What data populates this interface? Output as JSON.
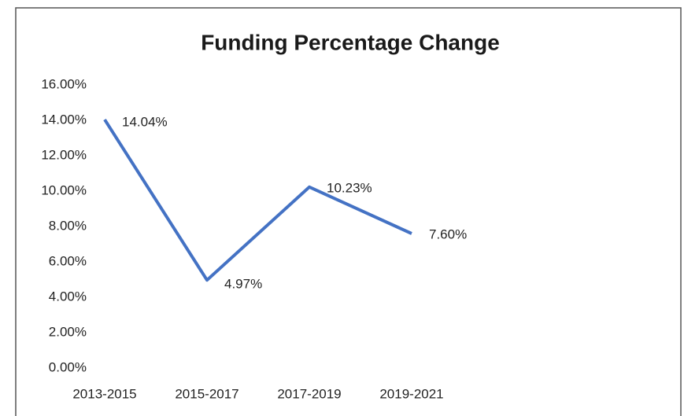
{
  "chart_data": {
    "type": "line",
    "title": "Funding Percentage Change",
    "categories": [
      "2013-2015",
      "2015-2017",
      "2017-2019",
      "2019-2021"
    ],
    "series": [
      {
        "name": "Funding Percentage Change",
        "color": "#4472c4",
        "values": [
          14.04,
          4.97,
          10.23,
          7.6
        ],
        "value_labels": [
          "14.04%",
          "4.97%",
          "10.23%",
          "7.60%"
        ]
      }
    ],
    "ylim": [
      0,
      16
    ],
    "yticks": [
      {
        "value": 0,
        "label": "0.00%"
      },
      {
        "value": 2,
        "label": "2.00%"
      },
      {
        "value": 4,
        "label": "4.00%"
      },
      {
        "value": 6,
        "label": "6.00%"
      },
      {
        "value": 8,
        "label": "8.00%"
      },
      {
        "value": 10,
        "label": "10.00%"
      },
      {
        "value": 12,
        "label": "12.00%"
      },
      {
        "value": 14,
        "label": "14.00%"
      },
      {
        "value": 16,
        "label": "16.00%"
      }
    ],
    "grid": false
  }
}
